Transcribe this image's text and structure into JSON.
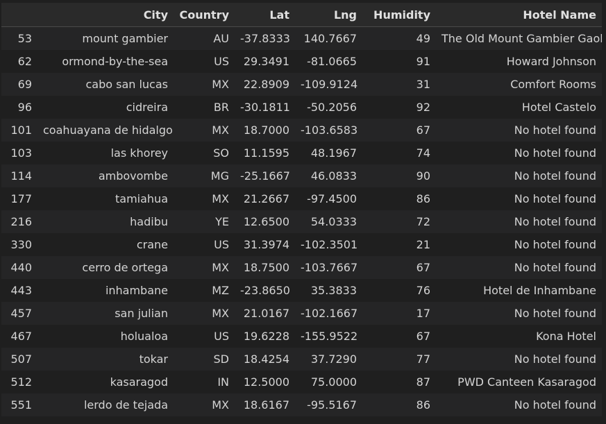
{
  "table": {
    "columns": [
      "",
      "City",
      "Country",
      "Lat",
      "Lng",
      "Humidity",
      "Hotel Name"
    ],
    "rows": [
      [
        "53",
        "mount gambier",
        "AU",
        "-37.8333",
        "140.7667",
        "49",
        "The Old Mount Gambier Gaol"
      ],
      [
        "62",
        "ormond-by-the-sea",
        "US",
        "29.3491",
        "-81.0665",
        "91",
        "Howard Johnson"
      ],
      [
        "69",
        "cabo san lucas",
        "MX",
        "22.8909",
        "-109.9124",
        "31",
        "Comfort Rooms"
      ],
      [
        "96",
        "cidreira",
        "BR",
        "-30.1811",
        "-50.2056",
        "92",
        "Hotel Castelo"
      ],
      [
        "101",
        "coahuayana de hidalgo",
        "MX",
        "18.7000",
        "-103.6583",
        "67",
        "No hotel found"
      ],
      [
        "103",
        "las khorey",
        "SO",
        "11.1595",
        "48.1967",
        "74",
        "No hotel found"
      ],
      [
        "114",
        "ambovombe",
        "MG",
        "-25.1667",
        "46.0833",
        "90",
        "No hotel found"
      ],
      [
        "177",
        "tamiahua",
        "MX",
        "21.2667",
        "-97.4500",
        "86",
        "No hotel found"
      ],
      [
        "216",
        "hadibu",
        "YE",
        "12.6500",
        "54.0333",
        "72",
        "No hotel found"
      ],
      [
        "330",
        "crane",
        "US",
        "31.3974",
        "-102.3501",
        "21",
        "No hotel found"
      ],
      [
        "440",
        "cerro de ortega",
        "MX",
        "18.7500",
        "-103.7667",
        "67",
        "No hotel found"
      ],
      [
        "443",
        "inhambane",
        "MZ",
        "-23.8650",
        "35.3833",
        "76",
        "Hotel de Inhambane"
      ],
      [
        "457",
        "san julian",
        "MX",
        "21.0167",
        "-102.1667",
        "17",
        "No hotel found"
      ],
      [
        "467",
        "holualoa",
        "US",
        "19.6228",
        "-155.9522",
        "67",
        "Kona Hotel"
      ],
      [
        "507",
        "tokar",
        "SD",
        "18.4254",
        "37.7290",
        "77",
        "No hotel found"
      ],
      [
        "512",
        "kasaragod",
        "IN",
        "12.5000",
        "75.0000",
        "87",
        "PWD Canteen Kasaragod"
      ],
      [
        "551",
        "lerdo de tejada",
        "MX",
        "18.6167",
        "-95.5167",
        "86",
        "No hotel found"
      ]
    ]
  }
}
